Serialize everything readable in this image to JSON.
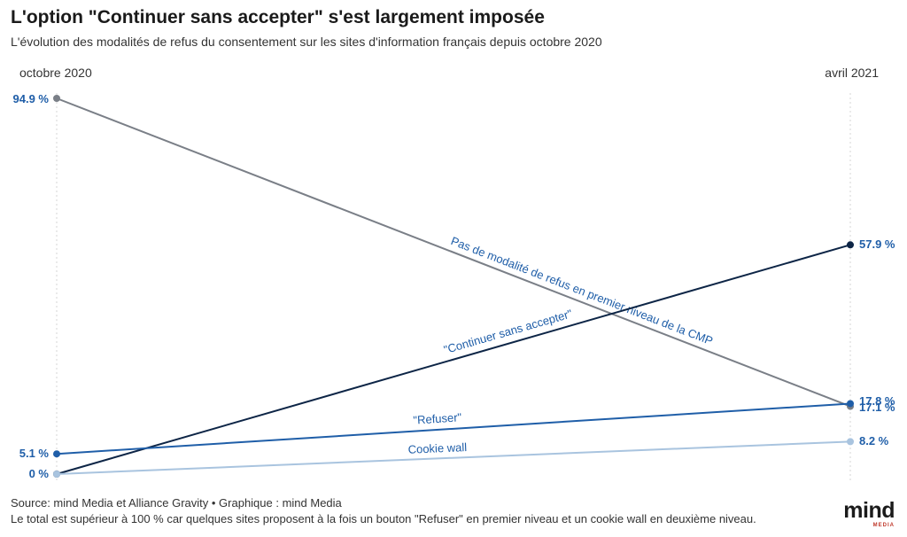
{
  "title": "L'option \"Continuer sans accepter\" s'est largement imposée",
  "subtitle": "L'évolution des modalités de refus du consentement sur les sites d'information français depuis octobre 2020",
  "source": "Source: mind Media et Alliance Gravity • Graphique : mind Media",
  "note": "Le total est supérieur à 100 % car quelques sites proposent à la fois un bouton \"Refuser\" en premier niveau et un cookie wall en deuxième niveau.",
  "logo": {
    "text": "mind",
    "subtext": "MEDIA"
  },
  "chart_data": {
    "type": "slope",
    "categories": [
      "octobre 2020",
      "avril 2021"
    ],
    "ylim": [
      0,
      100
    ],
    "series": [
      {
        "name": "Pas de modalité de refus en premier niveau de la CMP",
        "values": [
          94.9,
          17.1
        ],
        "color": "#7a7f87",
        "labels": [
          "94.9 %",
          "17.1 %"
        ]
      },
      {
        "name": "\"Continuer sans accepter\"",
        "values": [
          0,
          57.9
        ],
        "color": "#0d2546",
        "labels": [
          "0 %",
          "57.9 %"
        ]
      },
      {
        "name": "\"Refuser\"",
        "values": [
          5.1,
          17.8
        ],
        "color": "#1f5ea8",
        "labels": [
          "5.1 %",
          "17.8 %"
        ]
      },
      {
        "name": "Cookie wall",
        "values": [
          0,
          8.2
        ],
        "color": "#a9c4df",
        "labels": [
          "0 %",
          "8.2 %"
        ]
      }
    ]
  }
}
